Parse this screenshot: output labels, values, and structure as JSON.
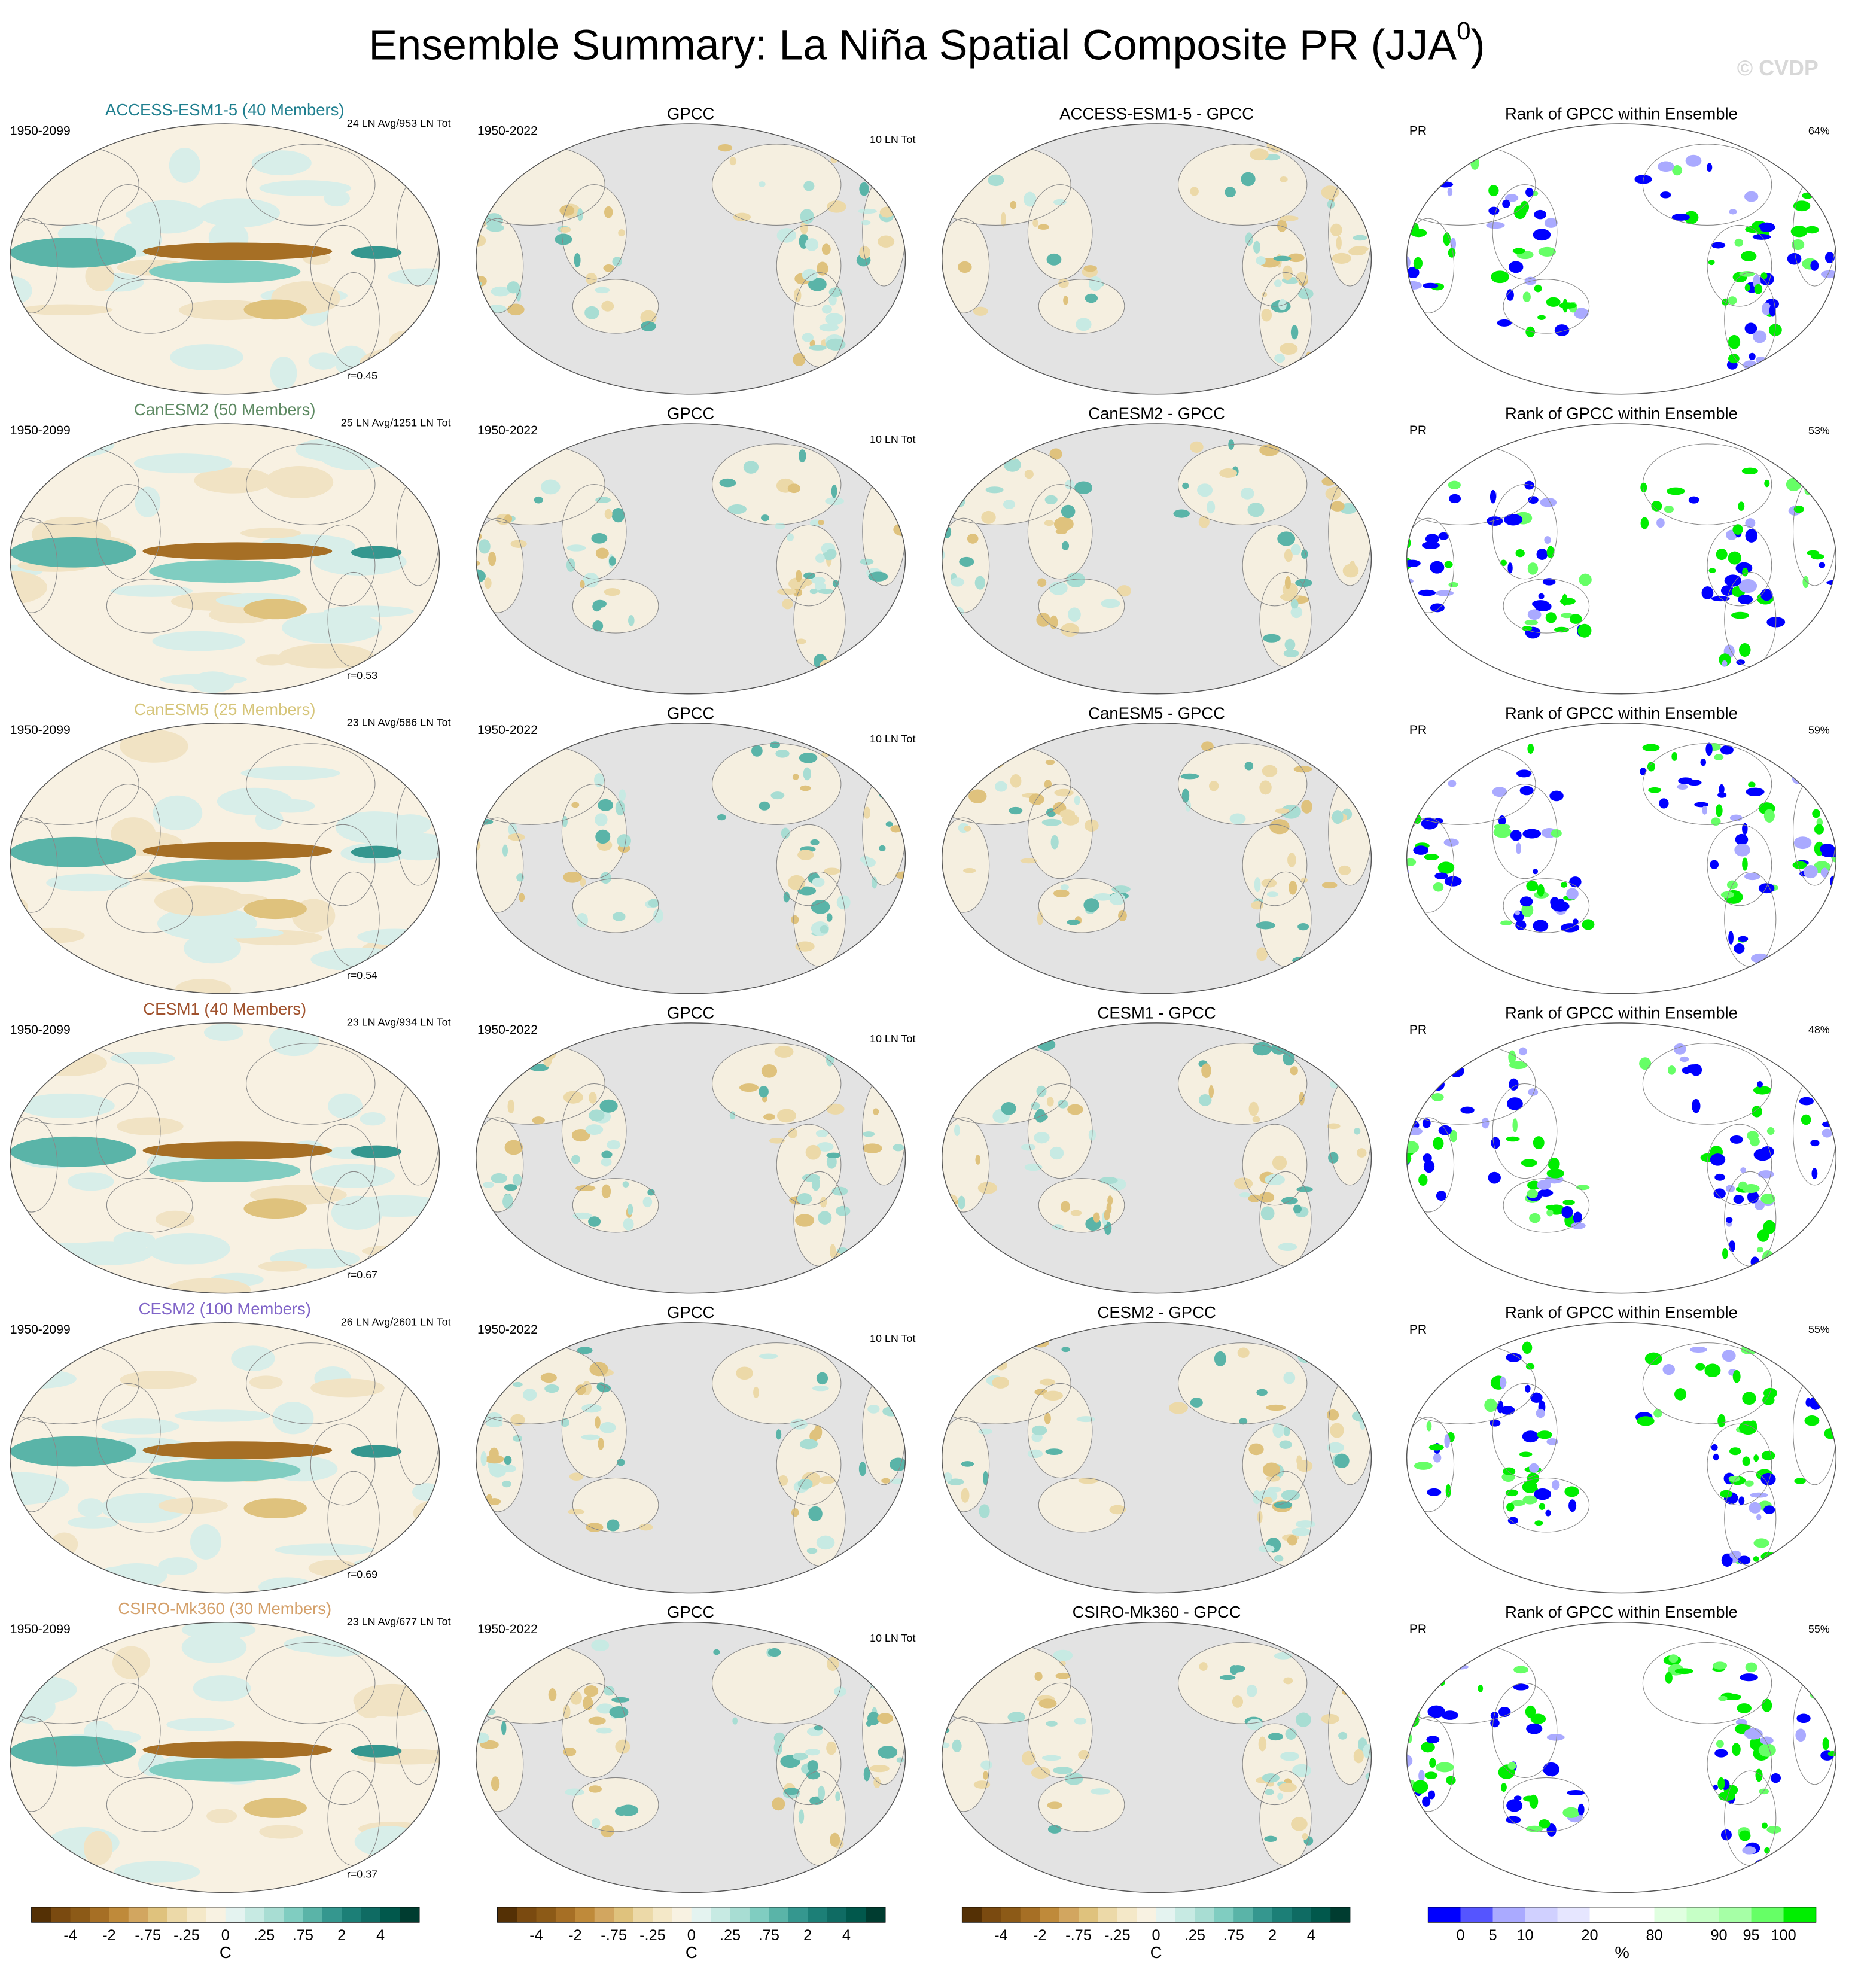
{
  "title": "Ensemble Summary: La Niña Spatial Composite PR (JJA",
  "title_superscript": "0",
  "watermark": "© CVDP",
  "rows": [
    {
      "model": {
        "title": "ACCESS-ESM1-5 (40 Members)",
        "title_color": "#1f7f8f",
        "period": "1950-2099",
        "counts": "24 LN Avg/953 LN Tot",
        "r": "r=0.45"
      },
      "obs": {
        "title": "GPCC",
        "period": "1950-2022",
        "counts": "10 LN Tot"
      },
      "diff": {
        "title": "ACCESS-ESM1-5 - GPCC"
      },
      "rank": {
        "title": "Rank of GPCC within Ensemble",
        "variable": "PR",
        "percent": "64%"
      }
    },
    {
      "model": {
        "title": "CanESM2 (50 Members)",
        "title_color": "#5e8a63",
        "period": "1950-2099",
        "counts": "25 LN Avg/1251 LN Tot",
        "r": "r=0.53"
      },
      "obs": {
        "title": "GPCC",
        "period": "1950-2022",
        "counts": "10 LN Tot"
      },
      "diff": {
        "title": "CanESM2 - GPCC"
      },
      "rank": {
        "title": "Rank of GPCC within Ensemble",
        "variable": "PR",
        "percent": "53%"
      }
    },
    {
      "model": {
        "title": "CanESM5 (25 Members)",
        "title_color": "#d6c57a",
        "period": "1950-2099",
        "counts": "23 LN Avg/586 LN Tot",
        "r": "r=0.54"
      },
      "obs": {
        "title": "GPCC",
        "period": "1950-2022",
        "counts": "10 LN Tot"
      },
      "diff": {
        "title": "CanESM5 - GPCC"
      },
      "rank": {
        "title": "Rank of GPCC within Ensemble",
        "variable": "PR",
        "percent": "59%"
      }
    },
    {
      "model": {
        "title": "CESM1 (40 Members)",
        "title_color": "#a0522d",
        "period": "1950-2099",
        "counts": "23 LN Avg/934 LN Tot",
        "r": "r=0.67"
      },
      "obs": {
        "title": "GPCC",
        "period": "1950-2022",
        "counts": "10 LN Tot"
      },
      "diff": {
        "title": "CESM1 - GPCC"
      },
      "rank": {
        "title": "Rank of GPCC within Ensemble",
        "variable": "PR",
        "percent": "48%"
      }
    },
    {
      "model": {
        "title": "CESM2 (100 Members)",
        "title_color": "#8064c8",
        "period": "1950-2099",
        "counts": "26 LN Avg/2601 LN Tot",
        "r": "r=0.69"
      },
      "obs": {
        "title": "GPCC",
        "period": "1950-2022",
        "counts": "10 LN Tot"
      },
      "diff": {
        "title": "CESM2 - GPCC"
      },
      "rank": {
        "title": "Rank of GPCC within Ensemble",
        "variable": "PR",
        "percent": "55%"
      }
    },
    {
      "model": {
        "title": "CSIRO-Mk360 (30 Members)",
        "title_color": "#d4a06a",
        "period": "1950-2099",
        "counts": "23 LN Avg/677 LN Tot",
        "r": "r=0.37"
      },
      "obs": {
        "title": "GPCC",
        "period": "1950-2022",
        "counts": "10 LN Tot"
      },
      "diff": {
        "title": "CSIRO-Mk360 - GPCC"
      },
      "rank": {
        "title": "Rank of GPCC within Ensemble",
        "variable": "PR",
        "percent": "55%"
      }
    }
  ],
  "colorbars": [
    {
      "colors": [
        "#543005",
        "#7a4a10",
        "#8c5a17",
        "#a66f25",
        "#bf8a3a",
        "#d2a660",
        "#dfc27d",
        "#ecd9a8",
        "#f4e8c8",
        "#f8f2e2",
        "#e4f3f0",
        "#c7eae3",
        "#a8ddd3",
        "#80cdc1",
        "#5ab4a8",
        "#35978f",
        "#1c7f77",
        "#0f6b63",
        "#01584c",
        "#003c30"
      ],
      "ticks": [
        "-4",
        "-2",
        "-.75",
        "-.25",
        "0",
        ".25",
        ".75",
        "2",
        "4"
      ],
      "unit": "C"
    },
    {
      "colors": [
        "#543005",
        "#7a4a10",
        "#8c5a17",
        "#a66f25",
        "#bf8a3a",
        "#d2a660",
        "#dfc27d",
        "#ecd9a8",
        "#f4e8c8",
        "#f8f2e2",
        "#e4f3f0",
        "#c7eae3",
        "#a8ddd3",
        "#80cdc1",
        "#5ab4a8",
        "#35978f",
        "#1c7f77",
        "#0f6b63",
        "#01584c",
        "#003c30"
      ],
      "ticks": [
        "-4",
        "-2",
        "-.75",
        "-.25",
        "0",
        ".25",
        ".75",
        "2",
        "4"
      ],
      "unit": "C"
    },
    {
      "colors": [
        "#543005",
        "#7a4a10",
        "#8c5a17",
        "#a66f25",
        "#bf8a3a",
        "#d2a660",
        "#dfc27d",
        "#ecd9a8",
        "#f4e8c8",
        "#f8f2e2",
        "#e4f3f0",
        "#c7eae3",
        "#a8ddd3",
        "#80cdc1",
        "#5ab4a8",
        "#35978f",
        "#1c7f77",
        "#0f6b63",
        "#01584c",
        "#003c30"
      ],
      "ticks": [
        "-4",
        "-2",
        "-.75",
        "-.25",
        "0",
        ".25",
        ".75",
        "2",
        "4"
      ],
      "unit": "C"
    },
    {
      "colors": [
        "#0000ff",
        "#5555ff",
        "#aaaaff",
        "#d0d0ff",
        "#e6e6ff",
        "#ffffff",
        "#ffffff",
        "#e0ffe0",
        "#c6ffc6",
        "#a6ffa6",
        "#66ff66",
        "#00ee00"
      ],
      "ticks": [
        "0",
        "5",
        "10",
        "20",
        "80",
        "90",
        "95",
        "100"
      ],
      "unit": "%"
    }
  ]
}
